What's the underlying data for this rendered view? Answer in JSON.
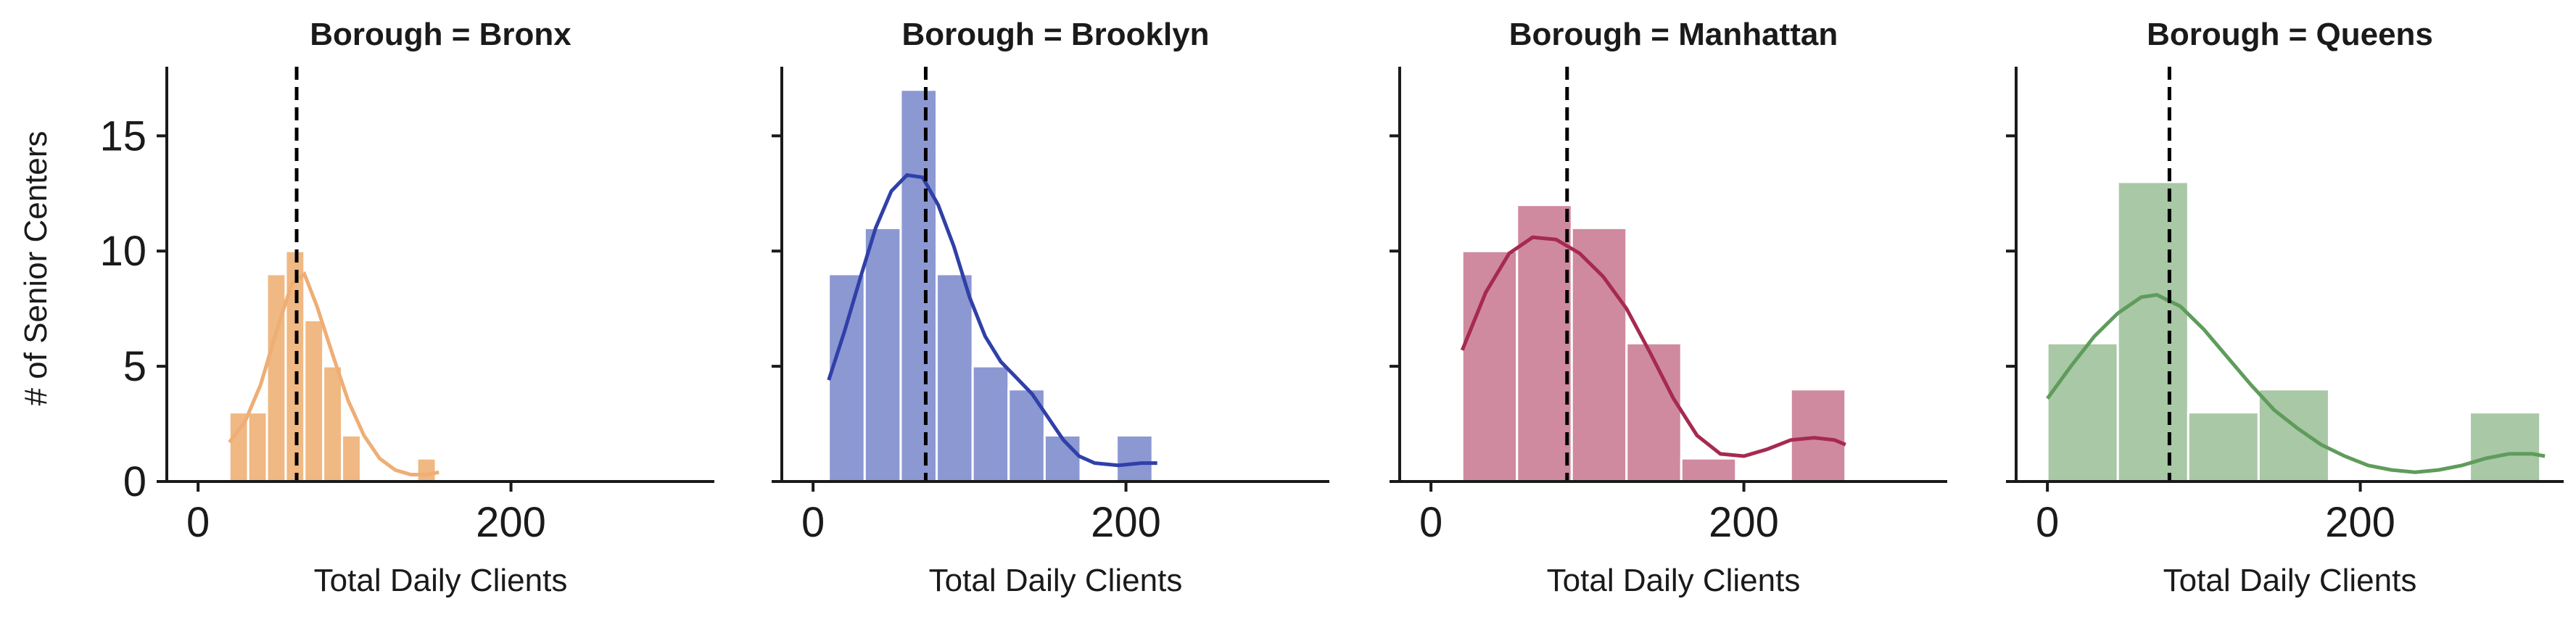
{
  "chart_data": {
    "type": "histogram",
    "ylabel": "# of Senior Centers",
    "xlabel": "Total Daily Clients",
    "xlim": [
      -20,
      330
    ],
    "ylim": [
      0,
      18
    ],
    "xticks": [
      0,
      200
    ],
    "yticks": [
      0,
      5,
      10,
      15
    ],
    "grid": false,
    "panels": [
      {
        "title": "Borough = Bronx",
        "color": "#f0b883",
        "line_color": "#eeae75",
        "mean": 63,
        "bins": [
          {
            "x0": 20,
            "x1": 32,
            "count": 3
          },
          {
            "x0": 32,
            "x1": 44,
            "count": 3
          },
          {
            "x0": 44,
            "x1": 56,
            "count": 9
          },
          {
            "x0": 56,
            "x1": 68,
            "count": 10
          },
          {
            "x0": 68,
            "x1": 80,
            "count": 7
          },
          {
            "x0": 80,
            "x1": 92,
            "count": 5
          },
          {
            "x0": 92,
            "x1": 104,
            "count": 2
          },
          {
            "x0": 104,
            "x1": 116,
            "count": 0
          },
          {
            "x0": 116,
            "x1": 128,
            "count": 0
          },
          {
            "x0": 128,
            "x1": 140,
            "count": 0
          },
          {
            "x0": 140,
            "x1": 152,
            "count": 1
          }
        ],
        "kde": [
          [
            20,
            1.7
          ],
          [
            30,
            2.6
          ],
          [
            40,
            4.2
          ],
          [
            50,
            6.5
          ],
          [
            60,
            8.6
          ],
          [
            68,
            9.0
          ],
          [
            76,
            7.6
          ],
          [
            86,
            5.5
          ],
          [
            96,
            3.5
          ],
          [
            106,
            2.0
          ],
          [
            116,
            1.0
          ],
          [
            126,
            0.5
          ],
          [
            136,
            0.3
          ],
          [
            146,
            0.3
          ],
          [
            154,
            0.4
          ]
        ]
      },
      {
        "title": "Borough = Brooklyn",
        "color": "#8c98d2",
        "line_color": "#3040a8",
        "mean": 72,
        "bins": [
          {
            "x0": 10,
            "x1": 33,
            "count": 9
          },
          {
            "x0": 33,
            "x1": 56,
            "count": 11
          },
          {
            "x0": 56,
            "x1": 79,
            "count": 17
          },
          {
            "x0": 79,
            "x1": 102,
            "count": 9
          },
          {
            "x0": 102,
            "x1": 125,
            "count": 5
          },
          {
            "x0": 125,
            "x1": 148,
            "count": 4
          },
          {
            "x0": 148,
            "x1": 171,
            "count": 2
          },
          {
            "x0": 171,
            "x1": 194,
            "count": 0
          },
          {
            "x0": 194,
            "x1": 217,
            "count": 2
          }
        ],
        "kde": [
          [
            10,
            4.4
          ],
          [
            20,
            6.5
          ],
          [
            30,
            8.8
          ],
          [
            40,
            11.0
          ],
          [
            50,
            12.6
          ],
          [
            60,
            13.3
          ],
          [
            70,
            13.2
          ],
          [
            80,
            12.0
          ],
          [
            90,
            10.2
          ],
          [
            100,
            8.0
          ],
          [
            110,
            6.3
          ],
          [
            120,
            5.2
          ],
          [
            130,
            4.5
          ],
          [
            140,
            3.8
          ],
          [
            150,
            2.8
          ],
          [
            160,
            1.8
          ],
          [
            170,
            1.1
          ],
          [
            180,
            0.8
          ],
          [
            195,
            0.7
          ],
          [
            210,
            0.8
          ],
          [
            220,
            0.8
          ]
        ]
      },
      {
        "title": "Borough = Manhattan",
        "color": "#cf8aa0",
        "line_color": "#a62a50",
        "mean": 87,
        "bins": [
          {
            "x0": 20,
            "x1": 55,
            "count": 10
          },
          {
            "x0": 55,
            "x1": 90,
            "count": 12
          },
          {
            "x0": 90,
            "x1": 125,
            "count": 11
          },
          {
            "x0": 125,
            "x1": 160,
            "count": 6
          },
          {
            "x0": 160,
            "x1": 195,
            "count": 1
          },
          {
            "x0": 195,
            "x1": 230,
            "count": 0
          },
          {
            "x0": 230,
            "x1": 265,
            "count": 4
          }
        ],
        "kde": [
          [
            20,
            5.7
          ],
          [
            35,
            8.2
          ],
          [
            50,
            9.9
          ],
          [
            65,
            10.6
          ],
          [
            80,
            10.5
          ],
          [
            95,
            9.9
          ],
          [
            110,
            8.9
          ],
          [
            125,
            7.5
          ],
          [
            140,
            5.6
          ],
          [
            155,
            3.6
          ],
          [
            170,
            2.0
          ],
          [
            185,
            1.2
          ],
          [
            200,
            1.1
          ],
          [
            215,
            1.4
          ],
          [
            230,
            1.8
          ],
          [
            245,
            1.9
          ],
          [
            258,
            1.8
          ],
          [
            265,
            1.6
          ]
        ]
      },
      {
        "title": "Borough = Queens",
        "color": "#a9c8a6",
        "line_color": "#5f9c5c",
        "mean": 78,
        "bins": [
          {
            "x0": 0,
            "x1": 45,
            "count": 6
          },
          {
            "x0": 45,
            "x1": 90,
            "count": 13
          },
          {
            "x0": 90,
            "x1": 135,
            "count": 3
          },
          {
            "x0": 135,
            "x1": 180,
            "count": 4
          },
          {
            "x0": 180,
            "x1": 225,
            "count": 0
          },
          {
            "x0": 225,
            "x1": 270,
            "count": 0
          },
          {
            "x0": 270,
            "x1": 315,
            "count": 3
          }
        ],
        "kde": [
          [
            0,
            3.6
          ],
          [
            15,
            5.0
          ],
          [
            30,
            6.3
          ],
          [
            45,
            7.3
          ],
          [
            60,
            8.0
          ],
          [
            70,
            8.1
          ],
          [
            85,
            7.6
          ],
          [
            100,
            6.6
          ],
          [
            115,
            5.4
          ],
          [
            130,
            4.2
          ],
          [
            145,
            3.1
          ],
          [
            160,
            2.3
          ],
          [
            175,
            1.6
          ],
          [
            190,
            1.1
          ],
          [
            205,
            0.7
          ],
          [
            220,
            0.5
          ],
          [
            235,
            0.4
          ],
          [
            250,
            0.5
          ],
          [
            265,
            0.7
          ],
          [
            280,
            1.0
          ],
          [
            295,
            1.2
          ],
          [
            310,
            1.2
          ],
          [
            318,
            1.1
          ]
        ]
      }
    ]
  }
}
